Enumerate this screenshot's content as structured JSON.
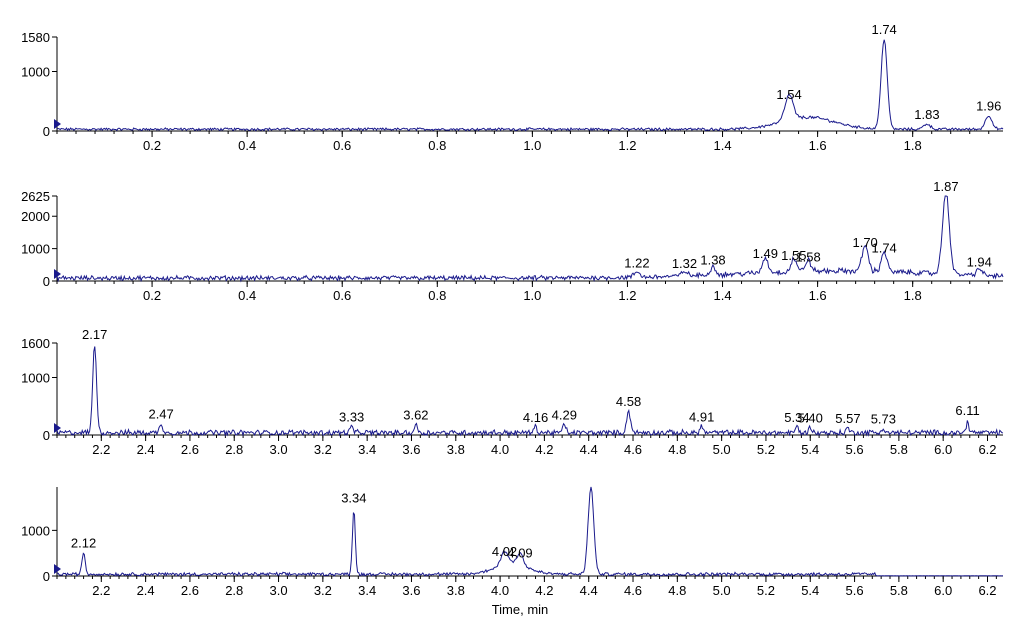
{
  "chart_data": [
    {
      "type": "line",
      "xlim": [
        0,
        1.99
      ],
      "ylim": [
        0,
        1580
      ],
      "y_ticks": [
        0,
        1000,
        1580
      ],
      "x_ticks": [
        0.2,
        0.4,
        0.6,
        0.8,
        1.0,
        1.2,
        1.4,
        1.6,
        1.8
      ],
      "x_tick_labels": [
        "0.2",
        "0.4",
        "0.6",
        "0.8",
        "1.0",
        "1.2",
        "1.4",
        "1.6",
        "1.8"
      ],
      "y_tick_labels": [
        "0",
        "1000",
        "1580"
      ],
      "baseline": 30,
      "noise": 18,
      "peaks": [
        {
          "x": 1.54,
          "y": 450,
          "w": 0.012,
          "label": "1.54"
        },
        {
          "x": 1.74,
          "y": 1550,
          "w": 0.009,
          "label": "1.74"
        },
        {
          "x": 1.83,
          "y": 120,
          "w": 0.01,
          "label": "1.83"
        },
        {
          "x": 1.96,
          "y": 260,
          "w": 0.01,
          "label": "1.96"
        }
      ],
      "humps": [
        {
          "x": 1.58,
          "y": 200,
          "w": 0.08
        }
      ]
    },
    {
      "type": "line",
      "xlim": [
        0,
        1.99
      ],
      "ylim": [
        0,
        2625
      ],
      "y_ticks": [
        0,
        1000,
        2000,
        2625
      ],
      "x_ticks": [
        0.2,
        0.4,
        0.6,
        0.8,
        1.0,
        1.2,
        1.4,
        1.6,
        1.8
      ],
      "x_tick_labels": [
        "0.2",
        "0.4",
        "0.6",
        "0.8",
        "1.0",
        "1.2",
        "1.4",
        "1.6",
        "1.8"
      ],
      "y_tick_labels": [
        "0",
        "1000",
        "2000",
        "2625"
      ],
      "baseline": 90,
      "noise": 60,
      "peaks": [
        {
          "x": 1.22,
          "y": 260,
          "w": 0.008,
          "label": "1.22"
        },
        {
          "x": 1.32,
          "y": 250,
          "w": 0.008,
          "label": "1.32"
        },
        {
          "x": 1.38,
          "y": 350,
          "w": 0.008,
          "label": "1.38"
        },
        {
          "x": 1.49,
          "y": 560,
          "w": 0.008,
          "label": "1.49"
        },
        {
          "x": 1.55,
          "y": 500,
          "w": 0.008,
          "label": "1.55"
        },
        {
          "x": 1.58,
          "y": 450,
          "w": 0.008,
          "label": "1.58"
        },
        {
          "x": 1.7,
          "y": 900,
          "w": 0.009,
          "label": "1.70"
        },
        {
          "x": 1.74,
          "y": 720,
          "w": 0.008,
          "label": "1.74"
        },
        {
          "x": 1.87,
          "y": 2650,
          "w": 0.01,
          "label": "1.87"
        },
        {
          "x": 1.94,
          "y": 300,
          "w": 0.008,
          "label": "1.94"
        }
      ],
      "humps": [
        {
          "x": 1.65,
          "y": 220,
          "w": 0.3
        }
      ]
    },
    {
      "type": "line",
      "xlim": [
        2.0,
        6.27
      ],
      "ylim": [
        0,
        1600
      ],
      "y_ticks": [
        0,
        1000,
        1600
      ],
      "x_ticks": [
        2.2,
        2.4,
        2.6,
        2.8,
        3.0,
        3.2,
        3.4,
        3.6,
        3.8,
        4.0,
        4.2,
        4.4,
        4.6,
        4.8,
        5.0,
        5.2,
        5.4,
        5.6,
        5.8,
        6.0,
        6.2
      ],
      "x_tick_labels": [
        "2.2",
        "2.4",
        "2.6",
        "2.8",
        "3.0",
        "3.2",
        "3.4",
        "3.6",
        "3.8",
        "4.0",
        "4.2",
        "4.4",
        "4.6",
        "4.8",
        "5.0",
        "5.2",
        "5.4",
        "5.6",
        "5.8",
        "6.0",
        "6.2"
      ],
      "y_tick_labels": [
        "0",
        "1000",
        "1600"
      ],
      "baseline": 40,
      "noise": 40,
      "peaks": [
        {
          "x": 2.17,
          "y": 1580,
          "w": 0.012,
          "label": "2.17"
        },
        {
          "x": 2.47,
          "y": 200,
          "w": 0.01,
          "label": "2.47"
        },
        {
          "x": 3.33,
          "y": 150,
          "w": 0.01,
          "label": "3.33"
        },
        {
          "x": 3.62,
          "y": 180,
          "w": 0.01,
          "label": "3.62"
        },
        {
          "x": 4.16,
          "y": 140,
          "w": 0.01,
          "label": "4.16"
        },
        {
          "x": 4.29,
          "y": 180,
          "w": 0.01,
          "label": "4.29"
        },
        {
          "x": 4.58,
          "y": 420,
          "w": 0.012,
          "label": "4.58"
        },
        {
          "x": 4.91,
          "y": 150,
          "w": 0.01,
          "label": "4.91"
        },
        {
          "x": 5.34,
          "y": 140,
          "w": 0.01,
          "label": "5.34"
        },
        {
          "x": 5.4,
          "y": 130,
          "w": 0.01,
          "label": "5.40"
        },
        {
          "x": 5.57,
          "y": 120,
          "w": 0.01,
          "label": "5.57"
        },
        {
          "x": 5.73,
          "y": 110,
          "w": 0.01,
          "label": "5.73"
        },
        {
          "x": 6.11,
          "y": 260,
          "w": 0.008,
          "label": "6.11"
        }
      ],
      "humps": []
    },
    {
      "type": "line",
      "xlim": [
        2.0,
        6.27
      ],
      "ylim": [
        0,
        1950
      ],
      "y_ticks": [
        0,
        1000
      ],
      "x_ticks": [
        2.2,
        2.4,
        2.6,
        2.8,
        3.0,
        3.2,
        3.4,
        3.6,
        3.8,
        4.0,
        4.2,
        4.4,
        4.6,
        4.8,
        5.0,
        5.2,
        5.4,
        5.6,
        5.8,
        6.0,
        6.2
      ],
      "x_tick_labels": [
        "2.2",
        "2.4",
        "2.6",
        "2.8",
        "3.0",
        "3.2",
        "3.4",
        "3.6",
        "3.8",
        "4.0",
        "4.2",
        "4.4",
        "4.6",
        "4.8",
        "5.0",
        "5.2",
        "5.4",
        "5.6",
        "5.8",
        "6.0",
        "6.2"
      ],
      "y_tick_labels": [
        "0",
        "1000"
      ],
      "xlabel": "Time, min",
      "baseline": 40,
      "noise": 30,
      "tail_end_x": 5.7,
      "peaks": [
        {
          "x": 2.12,
          "y": 520,
          "w": 0.01,
          "label": "2.12"
        },
        {
          "x": 3.34,
          "y": 1500,
          "w": 0.009,
          "label": "3.34"
        },
        {
          "x": 4.02,
          "y": 330,
          "w": 0.02,
          "label": "4.02"
        },
        {
          "x": 4.09,
          "y": 300,
          "w": 0.02,
          "label": "4.09"
        },
        {
          "x": 4.41,
          "y": 1950,
          "w": 0.018,
          "label": ""
        }
      ],
      "humps": [
        {
          "x": 4.05,
          "y": 250,
          "w": 0.1
        }
      ]
    }
  ],
  "colors": {
    "trace": "#1a1a8c",
    "marker": "#1a1a8c",
    "axis": "#000000"
  }
}
